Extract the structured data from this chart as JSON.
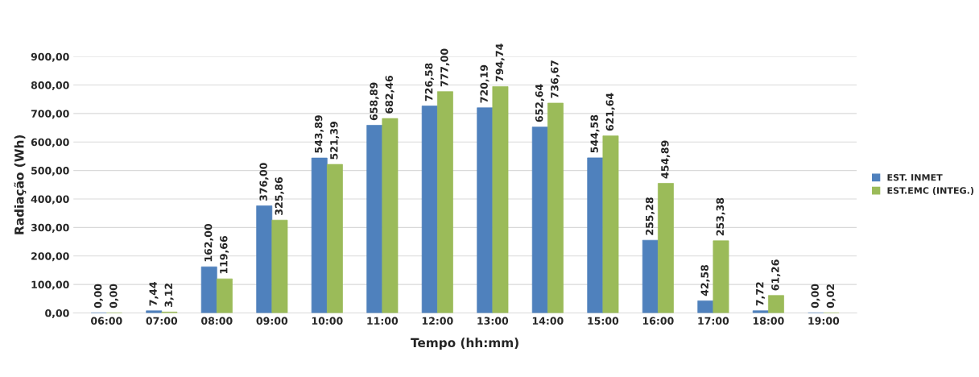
{
  "chart_data": {
    "type": "bar",
    "xlabel": "Tempo (hh:mm)",
    "ylabel": "Radiação (Wh)",
    "categories": [
      "06:00",
      "07:00",
      "08:00",
      "09:00",
      "10:00",
      "11:00",
      "12:00",
      "13:00",
      "14:00",
      "15:00",
      "16:00",
      "17:00",
      "18:00",
      "19:00"
    ],
    "series": [
      {
        "name": "EST. INMET",
        "color": "#4f81bd",
        "values": [
          0,
          7.44,
          162,
          376,
          543.89,
          658.89,
          726.58,
          720.19,
          652.64,
          544.58,
          255.28,
          42.58,
          7.72,
          0
        ],
        "value_labels": [
          "0,00",
          "7,44",
          "162,00",
          "376,00",
          "543,89",
          "658,89",
          "726,58",
          "720,19",
          "652,64",
          "544,58",
          "255,28",
          "42,58",
          "7,72",
          "0,00"
        ]
      },
      {
        "name": "EST.EMC (INTEG.)",
        "color": "#9bbb59",
        "values": [
          0,
          3.12,
          119.66,
          325.86,
          521.39,
          682.46,
          777,
          794.74,
          736.67,
          621.64,
          454.89,
          253.38,
          61.26,
          0.02
        ],
        "value_labels": [
          "0,00",
          "3,12",
          "119,66",
          "325,86",
          "521,39",
          "682,46",
          "777,00",
          "794,74",
          "736,67",
          "621,64",
          "454,89",
          "253,38",
          "61,26",
          "0,02"
        ]
      }
    ],
    "ylim": [
      0,
      900
    ],
    "yticks": [
      {
        "value": 0,
        "label": "0,00"
      },
      {
        "value": 100,
        "label": "100,00"
      },
      {
        "value": 200,
        "label": "200,00"
      },
      {
        "value": 300,
        "label": "300,00"
      },
      {
        "value": 400,
        "label": "400,00"
      },
      {
        "value": 500,
        "label": "500,00"
      },
      {
        "value": 600,
        "label": "600,00"
      },
      {
        "value": 700,
        "label": "700,00"
      },
      {
        "value": 800,
        "label": "800,00"
      },
      {
        "value": 900,
        "label": "900,00"
      }
    ],
    "grid": "y",
    "legend": "right"
  }
}
